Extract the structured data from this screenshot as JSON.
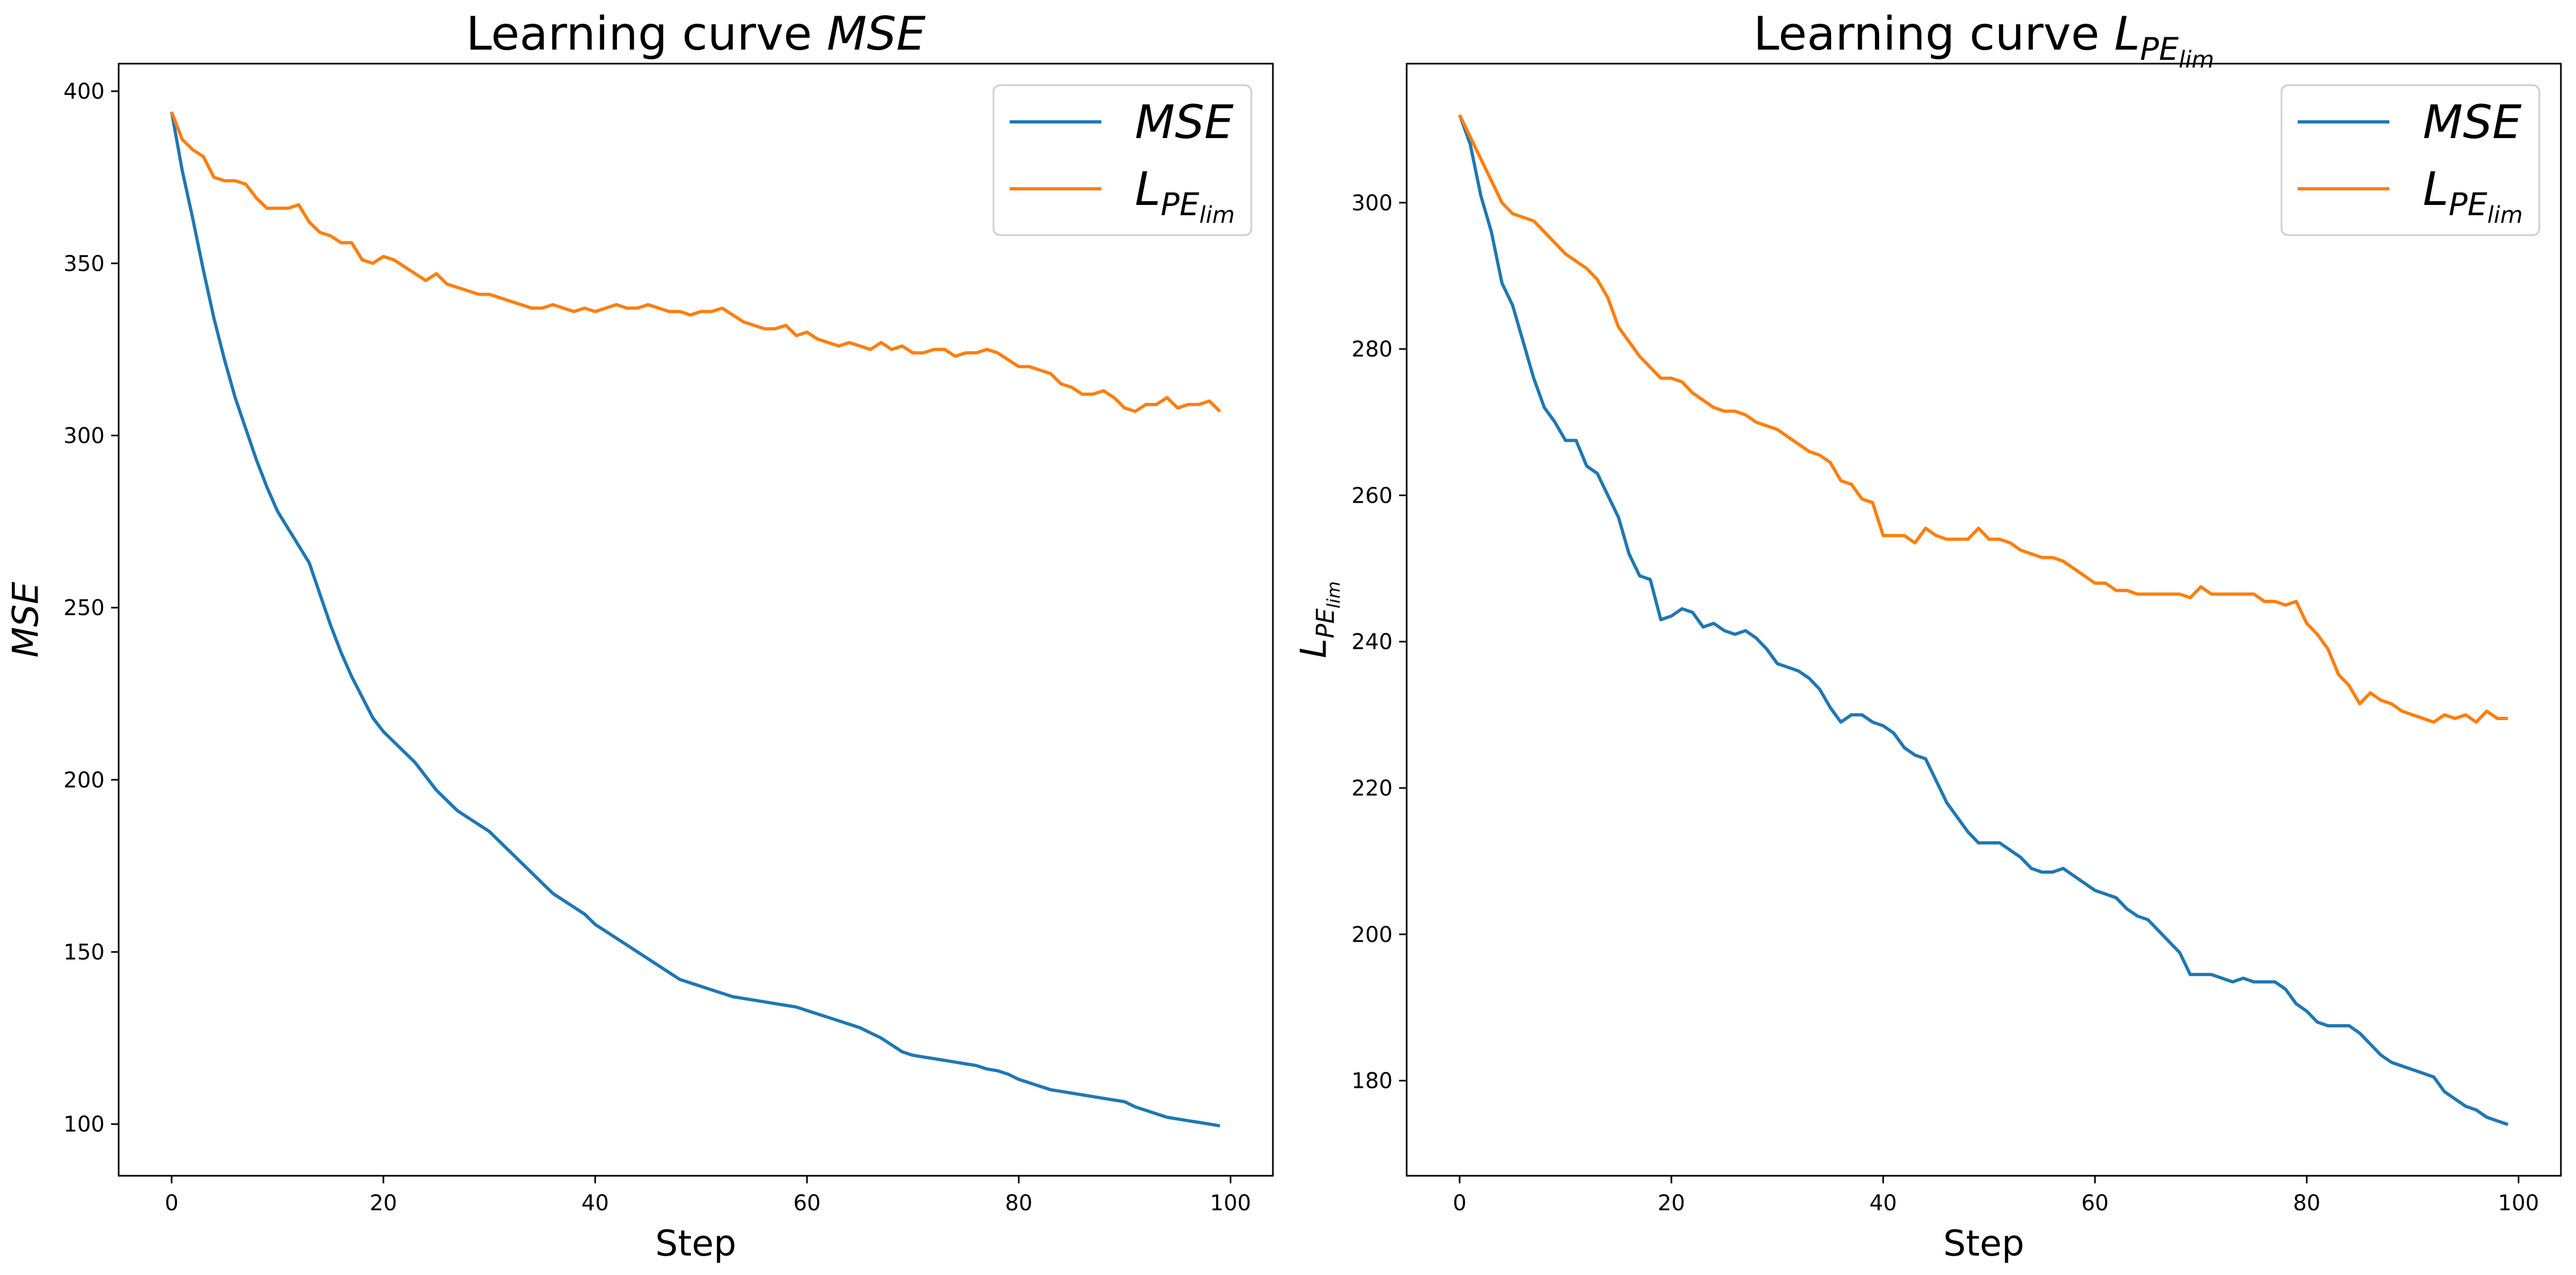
{
  "chart_data": [
    {
      "type": "line",
      "title_prefix": "Learning curve ",
      "title_math": {
        "base": "MSE",
        "sub": "",
        "subsub": ""
      },
      "xlabel": "Step",
      "ylabel_math": {
        "base": "MSE",
        "sub": "",
        "subsub": ""
      },
      "xlim": [
        -5,
        104
      ],
      "ylim": [
        85,
        408
      ],
      "xticks": [
        0,
        20,
        40,
        60,
        80,
        100
      ],
      "yticks": [
        100,
        150,
        200,
        250,
        300,
        350,
        400
      ],
      "legend_position": "top-right",
      "grid": false,
      "series": [
        {
          "name_math": {
            "base": "MSE",
            "sub": "",
            "subsub": ""
          },
          "color": "#1f77b4",
          "x": [
            0,
            1,
            2,
            3,
            4,
            5,
            6,
            7,
            8,
            9,
            10,
            11,
            12,
            13,
            14,
            15,
            16,
            17,
            18,
            19,
            20,
            21,
            22,
            23,
            24,
            25,
            26,
            27,
            28,
            29,
            30,
            31,
            32,
            33,
            34,
            35,
            36,
            37,
            38,
            39,
            40,
            41,
            42,
            43,
            44,
            45,
            46,
            47,
            48,
            49,
            50,
            51,
            52,
            53,
            54,
            55,
            56,
            57,
            58,
            59,
            60,
            61,
            62,
            63,
            64,
            65,
            66,
            67,
            68,
            69,
            70,
            71,
            72,
            73,
            74,
            75,
            76,
            77,
            78,
            79,
            80,
            81,
            82,
            83,
            84,
            85,
            86,
            87,
            88,
            89,
            90,
            91,
            92,
            93,
            94,
            95,
            96,
            97,
            98,
            99
          ],
          "y": [
            394,
            377,
            363,
            348,
            334,
            322,
            311,
            302,
            293,
            285,
            278,
            273,
            268,
            263,
            254,
            245,
            237,
            230,
            224,
            218,
            214,
            211,
            208,
            205,
            201,
            197,
            194,
            191,
            189,
            187,
            185,
            182,
            179,
            176,
            173,
            170,
            167,
            165,
            163,
            161,
            158,
            156,
            154,
            152,
            150,
            148,
            146,
            144,
            142,
            141,
            140,
            139,
            138,
            137,
            136.5,
            136,
            135.5,
            135,
            134.5,
            134,
            133,
            132,
            131,
            130,
            129,
            128,
            126.5,
            125,
            123,
            121,
            120,
            119.5,
            119,
            118.5,
            118,
            117.5,
            117,
            116,
            115.5,
            114.5,
            113,
            112,
            111,
            110,
            109.5,
            109,
            108.5,
            108,
            107.5,
            107,
            106.5,
            105,
            104,
            103,
            102,
            101.5,
            101,
            100.5,
            100,
            99.5
          ]
        },
        {
          "name_math": {
            "base": "L",
            "sub": "PE",
            "subsub": "lim"
          },
          "color": "#ff7f0e",
          "x": [
            0,
            1,
            2,
            3,
            4,
            5,
            6,
            7,
            8,
            9,
            10,
            11,
            12,
            13,
            14,
            15,
            16,
            17,
            18,
            19,
            20,
            21,
            22,
            23,
            24,
            25,
            26,
            27,
            28,
            29,
            30,
            31,
            32,
            33,
            34,
            35,
            36,
            37,
            38,
            39,
            40,
            41,
            42,
            43,
            44,
            45,
            46,
            47,
            48,
            49,
            50,
            51,
            52,
            53,
            54,
            55,
            56,
            57,
            58,
            59,
            60,
            61,
            62,
            63,
            64,
            65,
            66,
            67,
            68,
            69,
            70,
            71,
            72,
            73,
            74,
            75,
            76,
            77,
            78,
            79,
            80,
            81,
            82,
            83,
            84,
            85,
            86,
            87,
            88,
            89,
            90,
            91,
            92,
            93,
            94,
            95,
            96,
            97,
            98,
            99
          ],
          "y": [
            394,
            386,
            383,
            381,
            375,
            374,
            374,
            373,
            369,
            366,
            366,
            366,
            367,
            362,
            359,
            358,
            356,
            356,
            351,
            350,
            352,
            351,
            349,
            347,
            345,
            347,
            344,
            343,
            342,
            341,
            341,
            340,
            339,
            338,
            337,
            337,
            338,
            337,
            336,
            337,
            336,
            337,
            338,
            337,
            337,
            338,
            337,
            336,
            336,
            335,
            336,
            336,
            337,
            335,
            333,
            332,
            331,
            331,
            332,
            329,
            330,
            328,
            327,
            326,
            327,
            326,
            325,
            327,
            325,
            326,
            324,
            324,
            325,
            325,
            323,
            324,
            324,
            325,
            324,
            322,
            320,
            320,
            319,
            318,
            315,
            314,
            312,
            312,
            313,
            311,
            308,
            307,
            309,
            309,
            311,
            308,
            309,
            309,
            310,
            307
          ]
        }
      ]
    },
    {
      "type": "line",
      "title_prefix": "Learning curve ",
      "title_math": {
        "base": "L",
        "sub": "PE",
        "subsub": "lim"
      },
      "xlabel": "Step",
      "ylabel_math": {
        "base": "L",
        "sub": "PE",
        "subsub": "lim"
      },
      "xlim": [
        -5,
        104
      ],
      "ylim": [
        167,
        319
      ],
      "xticks": [
        0,
        20,
        40,
        60,
        80,
        100
      ],
      "yticks": [
        180,
        200,
        220,
        240,
        260,
        280,
        300
      ],
      "legend_position": "top-right",
      "grid": false,
      "series": [
        {
          "name_math": {
            "base": "MSE",
            "sub": "",
            "subsub": ""
          },
          "color": "#1f77b4",
          "x": [
            0,
            1,
            2,
            3,
            4,
            5,
            6,
            7,
            8,
            9,
            10,
            11,
            12,
            13,
            14,
            15,
            16,
            17,
            18,
            19,
            20,
            21,
            22,
            23,
            24,
            25,
            26,
            27,
            28,
            29,
            30,
            31,
            32,
            33,
            34,
            35,
            36,
            37,
            38,
            39,
            40,
            41,
            42,
            43,
            44,
            45,
            46,
            47,
            48,
            49,
            50,
            51,
            52,
            53,
            54,
            55,
            56,
            57,
            58,
            59,
            60,
            61,
            62,
            63,
            64,
            65,
            66,
            67,
            68,
            69,
            70,
            71,
            72,
            73,
            74,
            75,
            76,
            77,
            78,
            79,
            80,
            81,
            82,
            83,
            84,
            85,
            86,
            87,
            88,
            89,
            90,
            91,
            92,
            93,
            94,
            95,
            96,
            97,
            98,
            99
          ],
          "y": [
            312,
            308,
            301,
            296,
            289,
            286,
            281,
            276,
            272,
            270,
            267.5,
            267.5,
            264,
            263,
            260,
            257,
            252,
            249,
            248.5,
            243,
            243.5,
            244.5,
            244,
            242,
            242.5,
            241.5,
            241,
            241.5,
            240.5,
            239,
            237,
            236.5,
            236,
            235,
            233.5,
            231,
            229,
            230,
            230,
            229,
            228.5,
            227.5,
            225.5,
            224.5,
            224,
            221,
            218,
            216,
            214,
            212.5,
            212.5,
            212.5,
            211.5,
            210.5,
            209,
            208.5,
            208.5,
            209,
            208,
            207,
            206,
            205.5,
            205,
            203.5,
            202.5,
            202,
            200.5,
            199,
            197.5,
            194.5,
            194.5,
            194.5,
            194,
            193.5,
            194,
            193.5,
            193.5,
            193.5,
            192.5,
            190.5,
            189.5,
            188,
            187.5,
            187.5,
            187.5,
            186.5,
            185,
            183.5,
            182.5,
            182,
            181.5,
            181,
            180.5,
            178.5,
            177.5,
            176.5,
            176,
            175,
            174.5,
            174
          ]
        },
        {
          "name_math": {
            "base": "L",
            "sub": "PE",
            "subsub": "lim"
          },
          "color": "#ff7f0e",
          "x": [
            0,
            1,
            2,
            3,
            4,
            5,
            6,
            7,
            8,
            9,
            10,
            11,
            12,
            13,
            14,
            15,
            16,
            17,
            18,
            19,
            20,
            21,
            22,
            23,
            24,
            25,
            26,
            27,
            28,
            29,
            30,
            31,
            32,
            33,
            34,
            35,
            36,
            37,
            38,
            39,
            40,
            41,
            42,
            43,
            44,
            45,
            46,
            47,
            48,
            49,
            50,
            51,
            52,
            53,
            54,
            55,
            56,
            57,
            58,
            59,
            60,
            61,
            62,
            63,
            64,
            65,
            66,
            67,
            68,
            69,
            70,
            71,
            72,
            73,
            74,
            75,
            76,
            77,
            78,
            79,
            80,
            81,
            82,
            83,
            84,
            85,
            86,
            87,
            88,
            89,
            90,
            91,
            92,
            93,
            94,
            95,
            96,
            97,
            98,
            99
          ],
          "y": [
            312,
            309,
            306,
            303,
            300,
            298.5,
            298,
            297.5,
            296,
            294.5,
            293,
            292,
            291,
            289.5,
            287,
            283,
            281,
            279,
            277.5,
            276,
            276,
            275.5,
            274,
            273,
            272,
            271.5,
            271.5,
            271,
            270,
            269.5,
            269,
            268,
            267,
            266,
            265.5,
            264.5,
            262,
            261.5,
            259.5,
            259,
            254.5,
            254.5,
            254.5,
            253.5,
            255.5,
            254.5,
            254,
            254,
            254,
            255.5,
            254,
            254,
            253.5,
            252.5,
            252,
            251.5,
            251.5,
            251,
            250,
            249,
            248,
            248,
            247,
            247,
            246.5,
            246.5,
            246.5,
            246.5,
            246.5,
            246,
            247.5,
            246.5,
            246.5,
            246.5,
            246.5,
            246.5,
            245.5,
            245.5,
            245,
            245.5,
            242.5,
            241,
            239,
            235.5,
            234,
            231.5,
            233,
            232,
            231.5,
            230.5,
            230,
            229.5,
            229,
            230,
            229.5,
            230,
            229,
            230.5,
            229.5,
            229.5
          ]
        }
      ]
    }
  ]
}
